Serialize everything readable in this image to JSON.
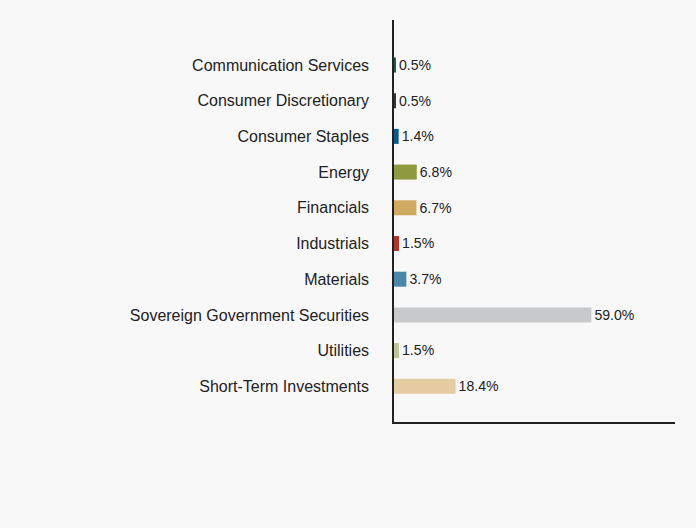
{
  "chart_data": {
    "type": "bar",
    "orientation": "horizontal",
    "categories": [
      "Communication Services",
      "Consumer Discretionary",
      "Consumer Staples",
      "Energy",
      "Financials",
      "Industrials",
      "Materials",
      "Sovereign Government Securities",
      "Utilities",
      "Short-Term Investments"
    ],
    "values": [
      0.5,
      0.5,
      1.4,
      6.8,
      6.7,
      1.5,
      3.7,
      59.0,
      1.5,
      18.4
    ],
    "value_labels": [
      "0.5%",
      "0.5%",
      "1.4%",
      "6.8%",
      "6.7%",
      "1.5%",
      "3.7%",
      "59.0%",
      "1.5%",
      "18.4%"
    ],
    "colors": [
      "#1f5a4c",
      "#333333",
      "#0b5a8a",
      "#8e9a3e",
      "#d1aa62",
      "#b0342a",
      "#4a86a8",
      "#c8c9cb",
      "#bfc39a",
      "#e5cca2"
    ],
    "xlim": [
      0,
      84
    ],
    "data_labels": true,
    "tick_labels": "y",
    "grid": false
  }
}
